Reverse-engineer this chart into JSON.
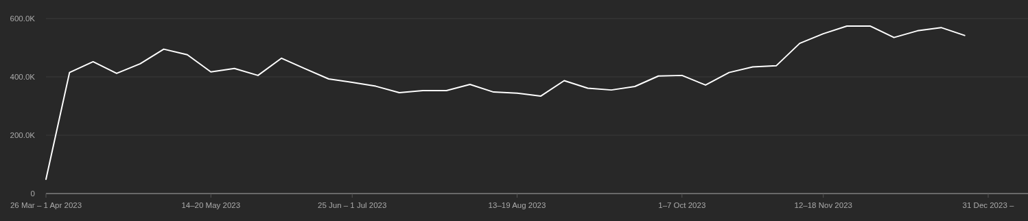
{
  "chart_data": {
    "type": "line",
    "categories": [
      "26 Mar – 1 Apr 2023",
      null,
      null,
      null,
      null,
      null,
      null,
      "14–20 May 2023",
      null,
      null,
      null,
      null,
      null,
      "25 Jun – 1 Jul 2023",
      null,
      null,
      null,
      null,
      null,
      null,
      "13–19 Aug 2023",
      null,
      null,
      null,
      null,
      null,
      null,
      "1–7 Oct 2023",
      null,
      null,
      null,
      null,
      null,
      "12–18 Nov 2023",
      null,
      null,
      null,
      null,
      null,
      null,
      "31 Dec 2023 –"
    ],
    "series": [
      {
        "color": "#ffffff",
        "values": [
          49000,
          415000,
          452000,
          412000,
          445000,
          495000,
          476000,
          417000,
          429000,
          405000,
          464000,
          428000,
          393000,
          381000,
          368000,
          346000,
          353000,
          353000,
          374000,
          348000,
          344000,
          334000,
          387000,
          361000,
          355000,
          367000,
          403000,
          405000,
          372000,
          415000,
          434000,
          438000,
          515000,
          548000,
          574000,
          574000,
          535000,
          558000,
          569000,
          542000,
          null
        ]
      }
    ],
    "ylim": [
      0,
      600000
    ],
    "yticks": [
      0,
      {
        "value": 200000,
        "label": "200.0K"
      },
      {
        "value": 400000,
        "label": "400.0K"
      },
      {
        "value": 600000,
        "label": "600.0K"
      }
    ],
    "grid": "y",
    "marker": "none",
    "line_style": "solid"
  }
}
